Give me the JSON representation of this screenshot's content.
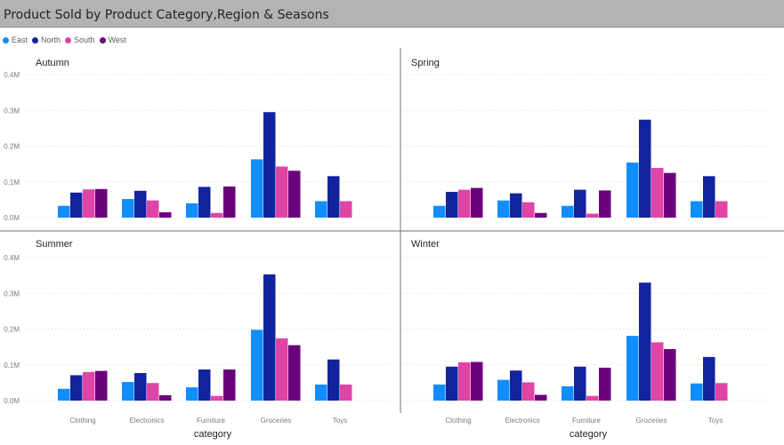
{
  "title": "Product Sold by Product Category,Region & Seasons",
  "legend": [
    {
      "name": "East",
      "color": "#118dff"
    },
    {
      "name": "North",
      "color": "#12239e"
    },
    {
      "name": "South",
      "color": "#e044a7"
    },
    {
      "name": "West",
      "color": "#6b007b"
    }
  ],
  "chart_data": {
    "type": "bar",
    "xlabel": "category",
    "ylim": [
      0,
      400000
    ],
    "yticks": [
      "0.0M",
      "0.1M",
      "0.2M",
      "0.3M",
      "0.4M"
    ],
    "categories": [
      "Clothing",
      "Electronics",
      "Furniture",
      "Groceries",
      "Toys"
    ],
    "panels": [
      {
        "title": "Autumn",
        "series": [
          {
            "name": "East",
            "values": [
              33000,
              52000,
              40000,
              163000,
              46000
            ]
          },
          {
            "name": "North",
            "values": [
              70000,
              75000,
              86000,
              295000,
              116000
            ]
          },
          {
            "name": "South",
            "values": [
              79000,
              48000,
              13000,
              143000,
              46000
            ]
          },
          {
            "name": "West",
            "values": [
              80000,
              15000,
              87000,
              131000,
              null
            ]
          }
        ]
      },
      {
        "title": "Spring",
        "series": [
          {
            "name": "East",
            "values": [
              33000,
              48000,
              33000,
              154000,
              46000
            ]
          },
          {
            "name": "North",
            "values": [
              72000,
              68000,
              78000,
              274000,
              116000
            ]
          },
          {
            "name": "South",
            "values": [
              78000,
              43000,
              11000,
              139000,
              46000
            ]
          },
          {
            "name": "West",
            "values": [
              83000,
              13000,
              76000,
              125000,
              null
            ]
          }
        ]
      },
      {
        "title": "Summer",
        "series": [
          {
            "name": "East",
            "values": [
              33000,
              52000,
              37000,
              198000,
              45000
            ]
          },
          {
            "name": "North",
            "values": [
              71000,
              77000,
              87000,
              353000,
              115000
            ]
          },
          {
            "name": "South",
            "values": [
              80000,
              49000,
              13000,
              174000,
              45000
            ]
          },
          {
            "name": "West",
            "values": [
              83000,
              15000,
              87000,
              155000,
              null
            ]
          }
        ]
      },
      {
        "title": "Winter",
        "series": [
          {
            "name": "East",
            "values": [
              45000,
              58000,
              40000,
              181000,
              48000
            ]
          },
          {
            "name": "North",
            "values": [
              95000,
              84000,
              95000,
              330000,
              122000
            ]
          },
          {
            "name": "South",
            "values": [
              107000,
              51000,
              13000,
              163000,
              49000
            ]
          },
          {
            "name": "West",
            "values": [
              108000,
              16000,
              92000,
              144000,
              null
            ]
          }
        ]
      }
    ]
  }
}
